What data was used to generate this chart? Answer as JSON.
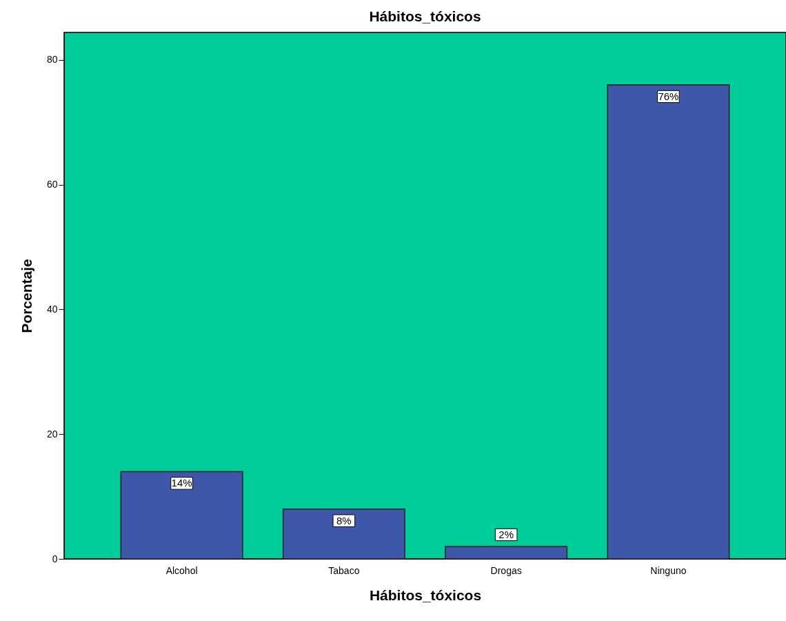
{
  "chart_data": {
    "type": "bar",
    "title": "Hábitos_tóxicos",
    "xlabel": "Hábitos_tóxicos",
    "ylabel": "Porcentaje",
    "categories": [
      "Alcohol",
      "Tabaco",
      "Drogas",
      "Ninguno"
    ],
    "values": [
      14,
      8,
      2,
      76
    ],
    "value_labels": [
      "14%",
      "8%",
      "2%",
      "76%"
    ],
    "color": "#3f57a8",
    "ylim": [
      0,
      84.4
    ],
    "yticks": [
      0,
      20,
      40,
      60,
      80
    ],
    "grid": false
  }
}
